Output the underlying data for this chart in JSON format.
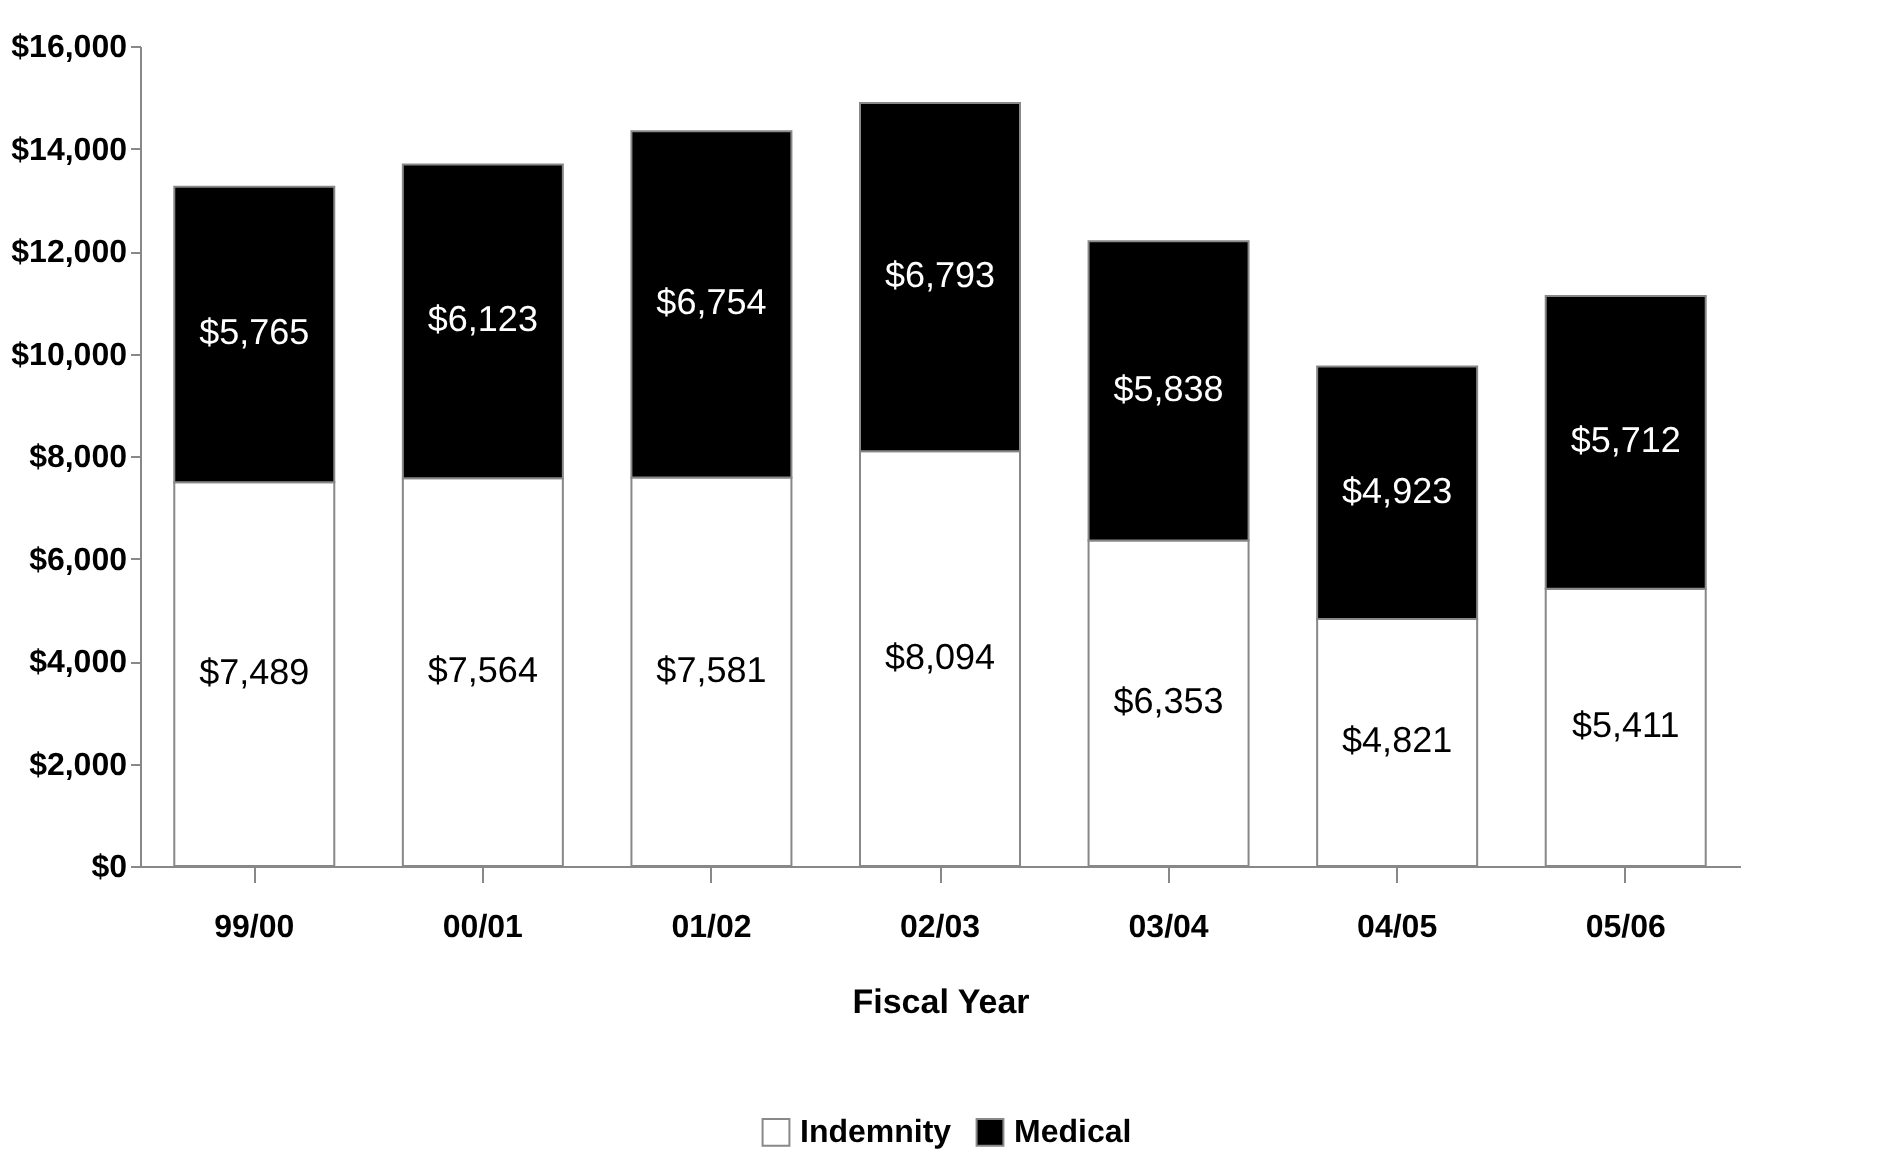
{
  "chart_data": {
    "type": "bar",
    "stacked": true,
    "xlabel": "Fiscal Year",
    "categories": [
      "99/00",
      "00/01",
      "01/02",
      "02/03",
      "03/04",
      "04/05",
      "05/06"
    ],
    "series": [
      {
        "name": "Indemnity",
        "color": "#ffffff",
        "values": [
          7489,
          7564,
          7581,
          8094,
          6353,
          4821,
          5411
        ],
        "value_labels": [
          "$7,489",
          "$7,564",
          "$7,581",
          "$8,094",
          "$6,353",
          "$4,821",
          "$5,411"
        ]
      },
      {
        "name": "Medical",
        "color": "#000000",
        "values": [
          5765,
          6123,
          6754,
          6793,
          5838,
          4923,
          5712
        ],
        "value_labels": [
          "$5,765",
          "$6,123",
          "$6,754",
          "$6,793",
          "$5,838",
          "$4,923",
          "$5,712"
        ]
      }
    ],
    "ylim": [
      0,
      16000
    ],
    "yticks": [
      {
        "value": 0,
        "label": "$0"
      },
      {
        "value": 2000,
        "label": "$2,000"
      },
      {
        "value": 4000,
        "label": "$4,000"
      },
      {
        "value": 6000,
        "label": "$6,000"
      },
      {
        "value": 8000,
        "label": "$8,000"
      },
      {
        "value": 10000,
        "label": "$10,000"
      },
      {
        "value": 12000,
        "label": "$12,000"
      },
      {
        "value": 14000,
        "label": "$14,000"
      },
      {
        "value": 16000,
        "label": "$16,000"
      }
    ],
    "grid": false,
    "legend": "bottom"
  }
}
